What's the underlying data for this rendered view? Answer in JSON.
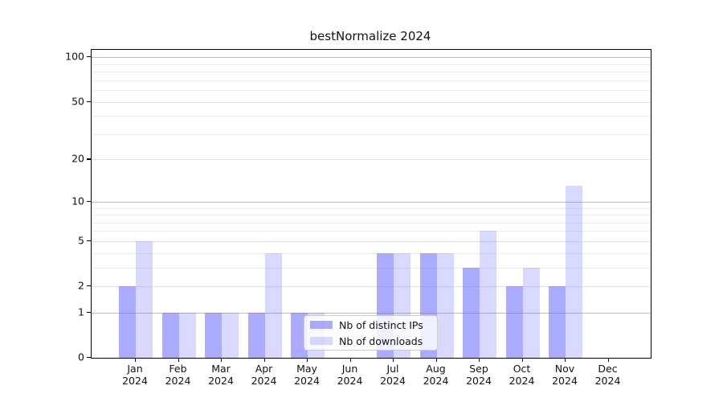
{
  "title": "bestNormalize 2024",
  "colors": {
    "bar_distinct_ips": "rgba(102,102,255,0.55)",
    "bar_downloads": "rgba(102,102,255,0.25)",
    "spine": "#000000",
    "grid_major": "#bbbbbb",
    "grid_labeled_minor": "#e3e3e3",
    "grid_minor": "#ececec",
    "legend_border": "#cccccc",
    "text": "#111111"
  },
  "legend": {
    "items": [
      {
        "label": "Nb of distinct IPs",
        "color": "rgba(102,102,255,0.55)"
      },
      {
        "label": "Nb of downloads",
        "color": "rgba(102,102,255,0.25)"
      }
    ]
  },
  "chart_data": {
    "type": "bar",
    "title": "bestNormalize 2024",
    "categories": [
      "Jan 2024",
      "Feb 2024",
      "Mar 2024",
      "Apr 2024",
      "May 2024",
      "Jun 2024",
      "Jul 2024",
      "Aug 2024",
      "Sep 2024",
      "Oct 2024",
      "Nov 2024",
      "Dec 2024"
    ],
    "series": [
      {
        "name": "Nb of distinct IPs",
        "values": [
          2,
          1,
          1,
          1,
          1,
          0,
          4,
          4,
          3,
          2,
          2,
          0
        ],
        "color": "rgba(102,102,255,0.55)"
      },
      {
        "name": "Nb of downloads",
        "values": [
          5,
          1,
          1,
          4,
          1,
          0,
          4,
          4,
          6,
          3,
          13,
          0
        ],
        "color": "rgba(102,102,255,0.25)"
      }
    ],
    "xlabel": "",
    "ylabel": "",
    "yscale": "log1p",
    "ylim": [
      0,
      112
    ],
    "yticks": [
      0,
      1,
      2,
      5,
      10,
      20,
      50,
      100
    ],
    "major_decade_gridlines": [
      1,
      10,
      100
    ],
    "labeled_minor_gridlines": [
      2,
      5,
      20,
      50
    ],
    "minor_gridlines": [
      3,
      4,
      6,
      7,
      8,
      9,
      30,
      40,
      60,
      70,
      80,
      90
    ],
    "grid": true,
    "legend_position": "lower left of center, inside plot"
  }
}
